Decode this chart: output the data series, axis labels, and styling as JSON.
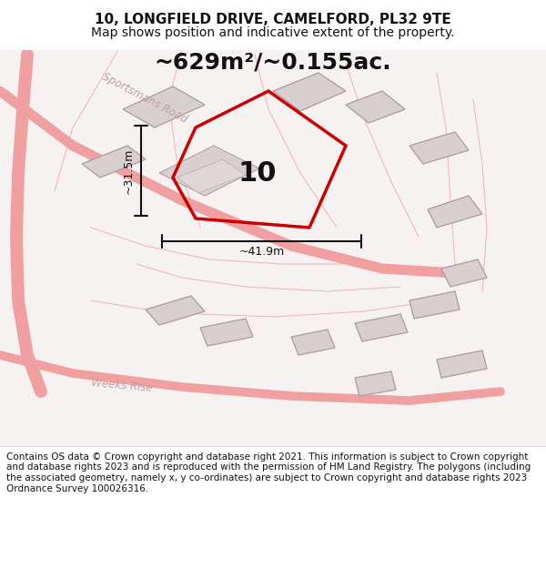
{
  "title": "10, LONGFIELD DRIVE, CAMELFORD, PL32 9TE",
  "subtitle": "Map shows position and indicative extent of the property.",
  "area_text": "~629m²/~0.155ac.",
  "label_number": "10",
  "dim_width": "~41.9m",
  "dim_height": "~31.5m",
  "footer": "Contains OS data © Crown copyright and database right 2021. This information is subject to Crown copyright and database rights 2023 and is reproduced with the permission of HM Land Registry. The polygons (including the associated geometry, namely x, y co-ordinates) are subject to Crown copyright and database rights 2023 Ordnance Survey 100026316.",
  "bg_color": "#f5f0f0",
  "map_bg": "#f8f4f4",
  "plot_color": "#cc0000",
  "road_color": "#f0a0a0",
  "building_color": "#d8d0d0",
  "building_outline": "#b0a0a0",
  "dim_color": "#111111",
  "title_fontsize": 11,
  "subtitle_fontsize": 10,
  "area_fontsize": 18,
  "label_fontsize": 22,
  "footer_fontsize": 7.5
}
